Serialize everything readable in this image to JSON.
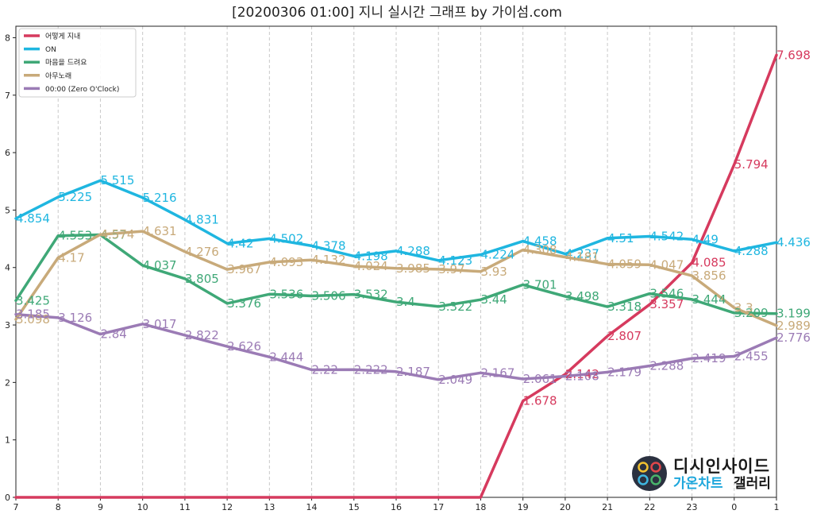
{
  "chart_data": {
    "type": "line",
    "title": "[20200306 01:00] 지니 실시간 그래프 by 가이섬.com",
    "xlabel": "",
    "ylabel": "",
    "categories": [
      "7",
      "8",
      "9",
      "10",
      "11",
      "12",
      "13",
      "14",
      "15",
      "16",
      "17",
      "18",
      "19",
      "20",
      "21",
      "22",
      "23",
      "0",
      "1"
    ],
    "yticks": [
      "0",
      "1",
      "2",
      "3",
      "4",
      "5",
      "6",
      "7",
      "8"
    ],
    "ylim": [
      0,
      8.2
    ],
    "grid": "vertical dashed",
    "legend_position": "top-left",
    "series": [
      {
        "name": "어떻게 지내",
        "color": "#d63a5e",
        "values": [
          0,
          0,
          0,
          0,
          0,
          0,
          0,
          0,
          0,
          0,
          0,
          0,
          1.678,
          2.142,
          2.807,
          3.357,
          4.085,
          5.794,
          7.698
        ],
        "labels": [
          null,
          null,
          null,
          null,
          null,
          null,
          null,
          null,
          null,
          null,
          null,
          null,
          "1.678",
          "2.142",
          "2.807",
          "3.357",
          "4.085",
          "5.794",
          "7.698"
        ]
      },
      {
        "name": "ON",
        "color": "#1fb6e0",
        "values": [
          4.854,
          5.225,
          5.515,
          5.216,
          4.831,
          4.42,
          4.502,
          4.378,
          4.198,
          4.288,
          4.123,
          4.224,
          4.458,
          4.237,
          4.51,
          4.542,
          4.49,
          4.288,
          4.436
        ],
        "labels": [
          "4.854",
          "5.225",
          "5.515",
          "5.216",
          "4.831",
          "4.42",
          "4.502",
          "4.378",
          "4.198",
          "4.288",
          "4.123",
          "4.224",
          "4.458",
          "4.237",
          "4.51",
          "4.542",
          "4.49",
          "4.288",
          "4.436"
        ]
      },
      {
        "name": "마음을 드려요",
        "color": "#3fa877",
        "values": [
          3.425,
          4.553,
          4.57,
          4.037,
          3.805,
          3.376,
          3.536,
          3.506,
          3.532,
          3.4,
          3.322,
          3.44,
          3.701,
          3.498,
          3.318,
          3.546,
          3.444,
          3.209,
          3.199
        ],
        "labels": [
          "3.425",
          "4.553",
          "4.57",
          "4.037",
          "3.805",
          "3.376",
          "3.536",
          "3.506",
          "3.532",
          "3.4",
          "3.322",
          "3.44",
          "3.701",
          "3.498",
          "3.318",
          "3.546",
          "3.444",
          "3.209",
          "3.199"
        ]
      },
      {
        "name": "아무노래",
        "color": "#c8aa7a",
        "values": [
          3.098,
          4.17,
          4.574,
          4.631,
          4.276,
          3.967,
          4.093,
          4.132,
          4.024,
          3.985,
          3.97,
          3.93,
          4.308,
          4.181,
          4.059,
          4.047,
          3.856,
          3.3,
          2.989
        ],
        "labels": [
          "3.098",
          "4.17",
          "4.574",
          "4.631",
          "4.276",
          "3.967",
          "4.093",
          "4.132",
          "4.024",
          "3.985",
          "3.97",
          "3.93",
          "4.308",
          "4.181",
          "4.059",
          "4.047",
          "3.856",
          "3.3",
          "2.989"
        ]
      },
      {
        "name": "00:00 (Zero O'Clock)",
        "color": "#9b7bb5",
        "values": [
          3.185,
          3.126,
          2.84,
          3.017,
          2.822,
          2.626,
          2.444,
          2.22,
          2.222,
          2.187,
          2.049,
          2.167,
          2.061,
          2.108,
          2.179,
          2.288,
          2.419,
          2.455,
          2.776
        ],
        "labels": [
          "3.185",
          "3.126",
          "2.84",
          "3.017",
          "2.822",
          "2.626",
          "2.444",
          "2.22",
          "2.222",
          "2.187",
          "2.049",
          "2.167",
          "2.061",
          "2.108",
          "2.179",
          "2.288",
          "2.419",
          "2.455",
          "2.776"
        ]
      }
    ]
  },
  "watermark": {
    "row1": "디시인사이드",
    "row2a": "가온차트",
    "row2b": "갤러리",
    "logo": "gaon-logo-icon"
  }
}
